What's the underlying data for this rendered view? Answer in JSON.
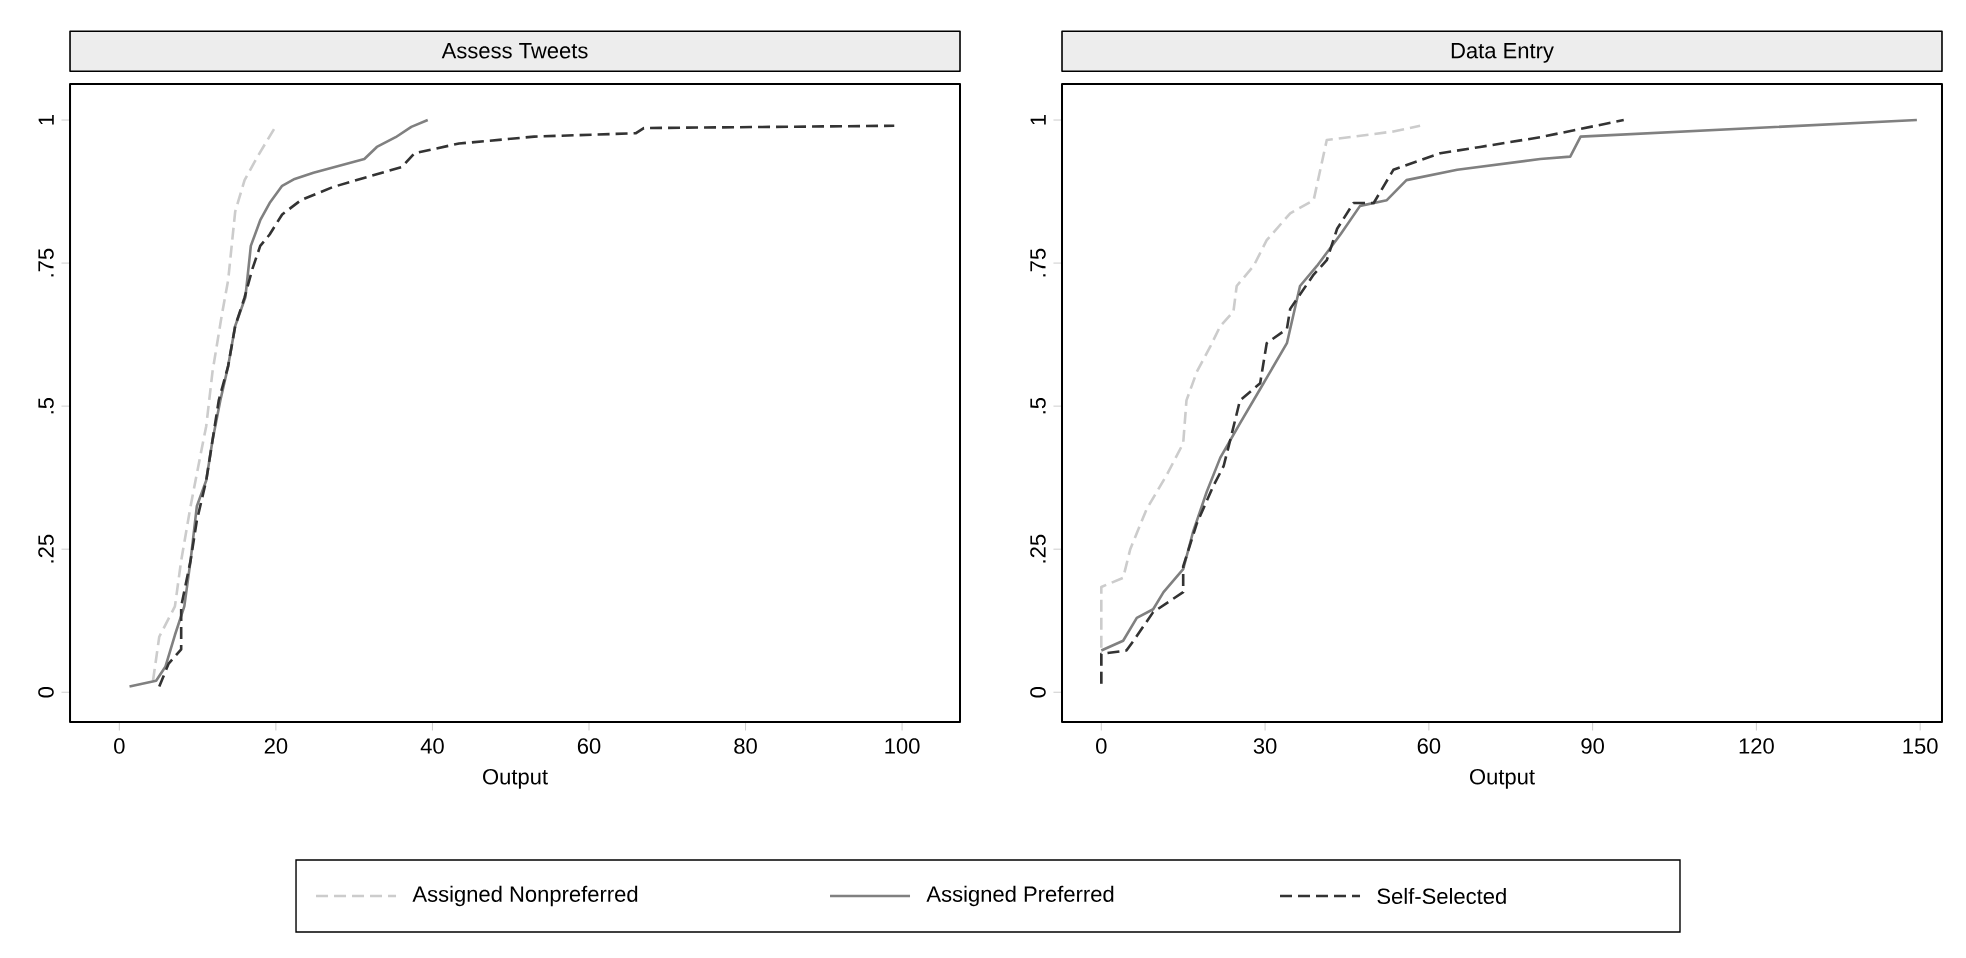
{
  "chart_data": [
    {
      "type": "line",
      "title": "Assess Tweets",
      "xlabel": "Output",
      "xlim": [
        -6.3,
        107.4
      ],
      "xticks": [
        0,
        20,
        40,
        60,
        80,
        100
      ],
      "ylim": [
        -0.052,
        1.063
      ],
      "yticks": [
        0,
        {
          "value": 0.25,
          "label": ".25"
        },
        {
          "value": 0.5,
          "label": ".5"
        },
        {
          "value": 0.75,
          "label": ".75"
        },
        1
      ],
      "grid": false,
      "legend": "bottom",
      "marker": "none",
      "series": [
        {
          "name": "Assigned Nonpreferred",
          "color": "#cccccc",
          "line_style": "dashed",
          "x": [
            4.3,
            5.1,
            7.1,
            7.9,
            9.1,
            10.3,
            11.1,
            11.9,
            13.1,
            13.9,
            14.8,
            16,
            17.6,
            19.8
          ],
          "values": [
            0.02,
            0.097,
            0.15,
            0.23,
            0.325,
            0.41,
            0.465,
            0.56,
            0.66,
            0.72,
            0.84,
            0.895,
            0.935,
            0.985
          ]
        },
        {
          "name": "Assigned Preferred",
          "color": "#808080",
          "line_style": "solid",
          "x": [
            1.3,
            4.7,
            5.9,
            7.1,
            8.3,
            9.1,
            9.9,
            11.1,
            11.9,
            12.9,
            13.9,
            14.8,
            16.1,
            16.8,
            18,
            19.2,
            20.8,
            22.4,
            24.8,
            31.3,
            32.9,
            35.3,
            37.3,
            39.4
          ],
          "values": [
            0.01,
            0.02,
            0.045,
            0.1,
            0.15,
            0.23,
            0.325,
            0.37,
            0.44,
            0.51,
            0.57,
            0.64,
            0.69,
            0.78,
            0.825,
            0.855,
            0.885,
            0.897,
            0.908,
            0.932,
            0.953,
            0.97,
            0.988,
            1.0
          ]
        },
        {
          "name": "Self-Selected",
          "color": "#333333",
          "line_style": "dashed",
          "x": [
            5.1,
            6.3,
            7.9,
            7.9,
            9.1,
            9.9,
            11.1,
            11.9,
            12.7,
            13.9,
            14.8,
            16,
            17,
            18,
            19.2,
            20.8,
            23.2,
            27.3,
            36.1,
            37.7,
            43.4,
            53,
            66,
            67,
            99
          ],
          "values": [
            0.01,
            0.05,
            0.075,
            0.15,
            0.23,
            0.3,
            0.37,
            0.44,
            0.51,
            0.57,
            0.64,
            0.69,
            0.74,
            0.78,
            0.8,
            0.835,
            0.86,
            0.883,
            0.918,
            0.942,
            0.959,
            0.971,
            0.977,
            0.986,
            0.99
          ]
        }
      ]
    },
    {
      "type": "line",
      "title": "Data Entry",
      "xlabel": "Output",
      "xlim": [
        -7.2,
        154
      ],
      "xticks": [
        0,
        30,
        60,
        90,
        120,
        150
      ],
      "ylim": [
        -0.052,
        1.063
      ],
      "yticks": [
        0,
        {
          "value": 0.25,
          "label": ".25"
        },
        {
          "value": 0.5,
          "label": ".5"
        },
        {
          "value": 0.75,
          "label": ".75"
        },
        1
      ],
      "grid": false,
      "marker": "none",
      "series": [
        {
          "color": "#cccccc",
          "line_style": "dashed",
          "x": [
            0,
            0,
            4,
            5.3,
            8.3,
            12,
            15,
            15.6,
            17.5,
            20,
            21.8,
            24.2,
            24.8,
            27.9,
            30.3,
            34.6,
            38.9,
            41.3,
            53.5,
            58.4
          ],
          "values": [
            0.015,
            0.184,
            0.2,
            0.25,
            0.32,
            0.38,
            0.435,
            0.51,
            0.56,
            0.605,
            0.64,
            0.665,
            0.71,
            0.745,
            0.79,
            0.837,
            0.86,
            0.965,
            0.98,
            0.99
          ]
        },
        {
          "color": "#808080",
          "line_style": "solid",
          "x": [
            0,
            4,
            6.5,
            9.5,
            11.4,
            15,
            16.8,
            19.3,
            21.8,
            25.4,
            29.1,
            34,
            36.4,
            39.5,
            43.8,
            47.4,
            52.3,
            55.9,
            65.2,
            80.4,
            85.9,
            87.8,
            149.4
          ],
          "values": [
            0.073,
            0.09,
            0.13,
            0.145,
            0.175,
            0.215,
            0.28,
            0.35,
            0.41,
            0.47,
            0.53,
            0.61,
            0.71,
            0.745,
            0.8,
            0.85,
            0.86,
            0.895,
            0.913,
            0.932,
            0.936,
            0.971,
            1.0
          ]
        },
        {
          "color": "#333333",
          "line_style": "dashed",
          "x": [
            0,
            0,
            4.6,
            5.9,
            9.5,
            15,
            15,
            17.5,
            20.5,
            22.4,
            23.6,
            25.4,
            29.1,
            30.3,
            34,
            34.6,
            38.9,
            41.3,
            43.2,
            46.2,
            49.9,
            53.5,
            62.1,
            69.4,
            80.4,
            95.7
          ],
          "values": [
            0.015,
            0.067,
            0.073,
            0.09,
            0.14,
            0.175,
            0.22,
            0.295,
            0.36,
            0.395,
            0.44,
            0.51,
            0.54,
            0.61,
            0.635,
            0.67,
            0.73,
            0.755,
            0.81,
            0.855,
            0.855,
            0.913,
            0.942,
            0.953,
            0.97,
            1.0
          ]
        }
      ]
    }
  ]
}
